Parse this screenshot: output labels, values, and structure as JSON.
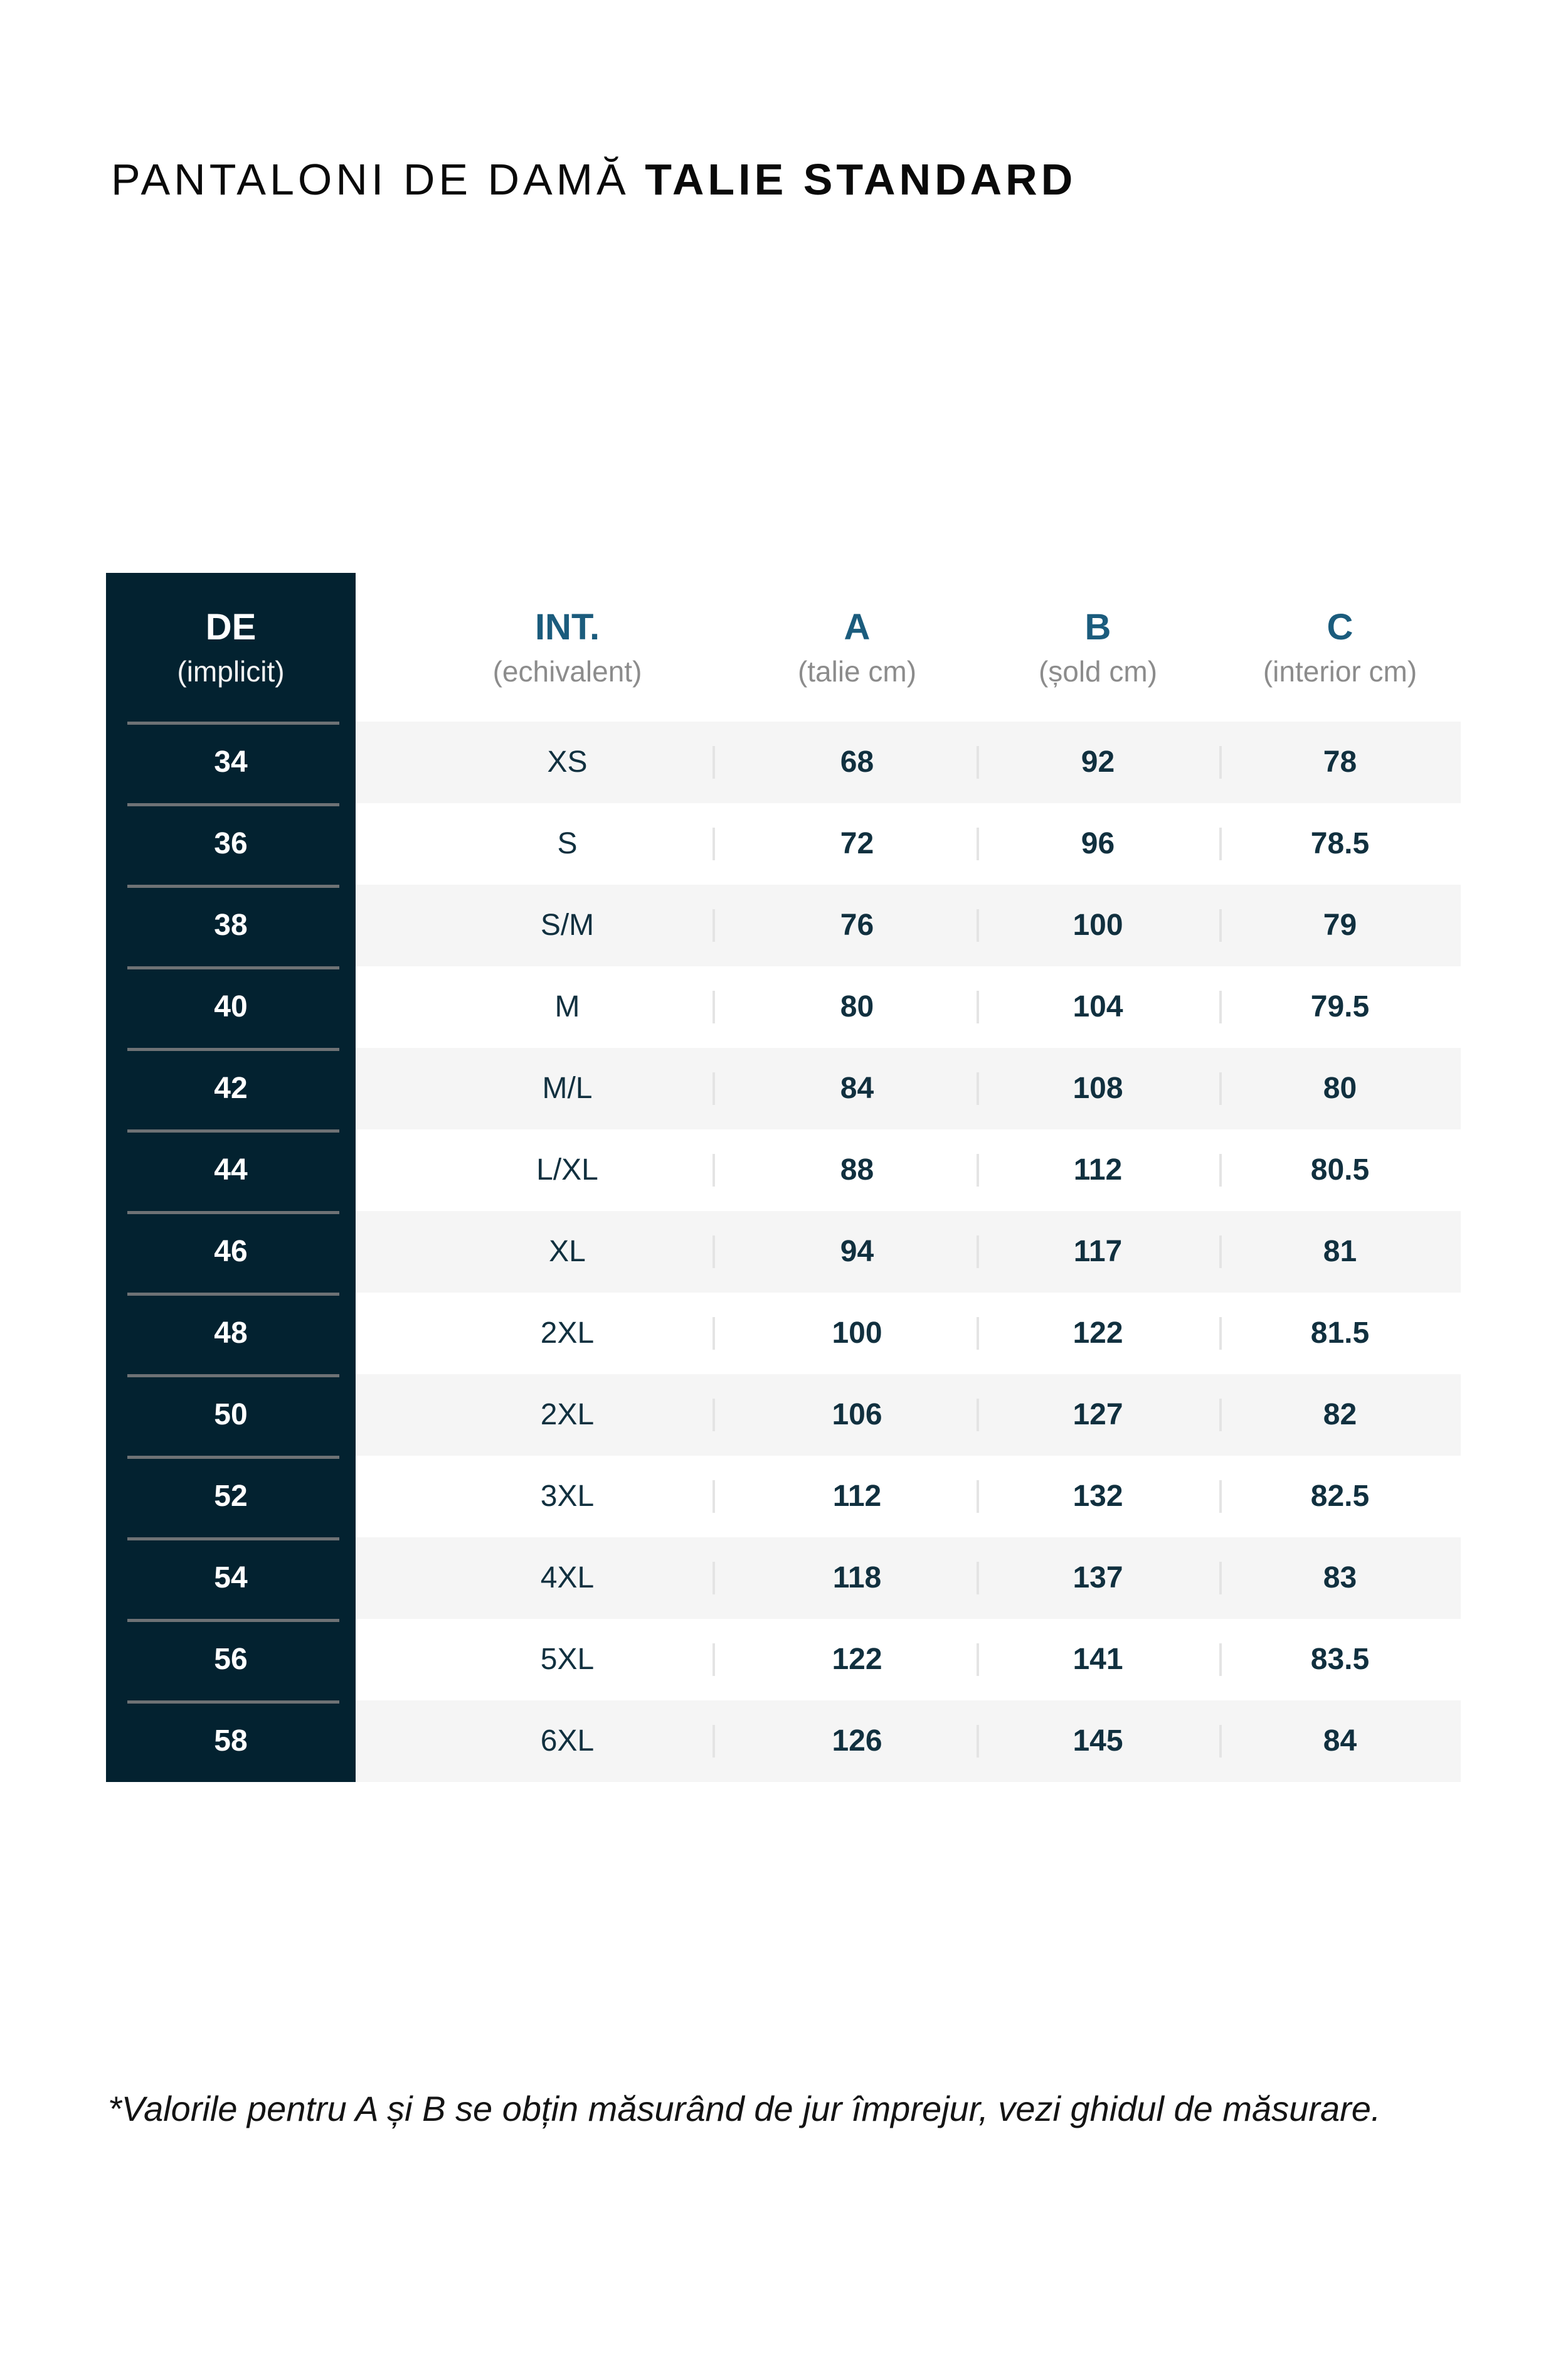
{
  "title": {
    "regular": "PANTALONI DE DAMĂ",
    "bold": "TALIE STANDARD"
  },
  "table": {
    "header": {
      "de": {
        "label": "DE",
        "sub": "(implicit)"
      },
      "int": {
        "label": "INT.",
        "sub": "(echivalent)"
      },
      "a": {
        "label": "A",
        "sub": "(talie cm)"
      },
      "b": {
        "label": "B",
        "sub": "(șold cm)"
      },
      "c": {
        "label": "C",
        "sub": "(interior cm)"
      }
    },
    "rows": [
      {
        "de": "34",
        "int": "XS",
        "a": "68",
        "b": "92",
        "c": "78"
      },
      {
        "de": "36",
        "int": "S",
        "a": "72",
        "b": "96",
        "c": "78.5"
      },
      {
        "de": "38",
        "int": "S/M",
        "a": "76",
        "b": "100",
        "c": "79"
      },
      {
        "de": "40",
        "int": "M",
        "a": "80",
        "b": "104",
        "c": "79.5"
      },
      {
        "de": "42",
        "int": "M/L",
        "a": "84",
        "b": "108",
        "c": "80"
      },
      {
        "de": "44",
        "int": "L/XL",
        "a": "88",
        "b": "112",
        "c": "80.5"
      },
      {
        "de": "46",
        "int": "XL",
        "a": "94",
        "b": "117",
        "c": "81"
      },
      {
        "de": "48",
        "int": "2XL",
        "a": "100",
        "b": "122",
        "c": "81.5"
      },
      {
        "de": "50",
        "int": "2XL",
        "a": "106",
        "b": "127",
        "c": "82"
      },
      {
        "de": "52",
        "int": "3XL",
        "a": "112",
        "b": "132",
        "c": "82.5"
      },
      {
        "de": "54",
        "int": "4XL",
        "a": "118",
        "b": "137",
        "c": "83"
      },
      {
        "de": "56",
        "int": "5XL",
        "a": "122",
        "b": "141",
        "c": "83.5"
      },
      {
        "de": "58",
        "int": "6XL",
        "a": "126",
        "b": "145",
        "c": "84"
      }
    ]
  },
  "footnote": "*Valorile pentru A și B se obțin măsurând de jur împrejur, vezi ghidul de măsurare.",
  "colors": {
    "dark_navy": "#032230",
    "steel_blue": "#1b5c7d",
    "value_navy": "#11303f",
    "row_alt_gray": "#f5f5f5",
    "divider_gray": "#6e7275",
    "separator_gray": "#e4e4e4",
    "sublabel_gray": "#8c8c8c"
  }
}
